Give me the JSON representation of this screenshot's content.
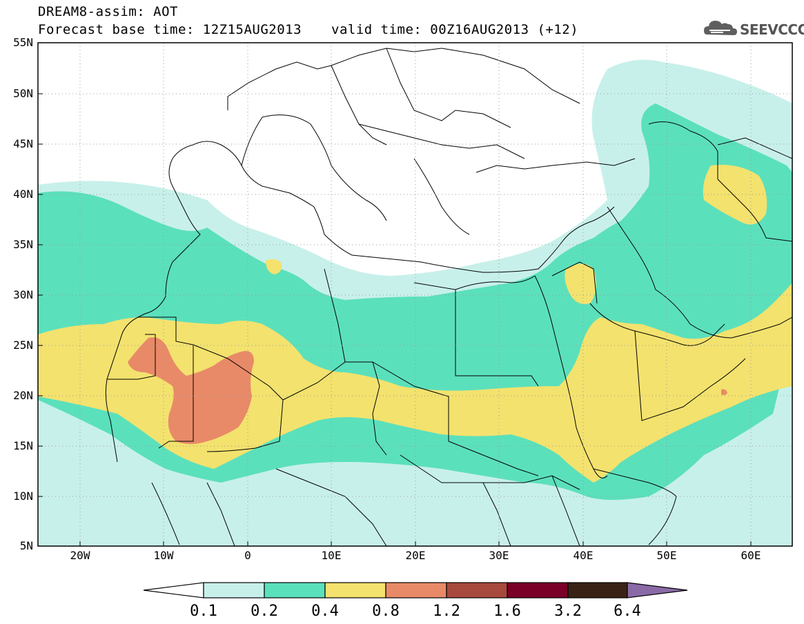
{
  "header": {
    "title": "DREAM8-assim: AOT",
    "base_time": "Forecast base time: 12Z15AUG2013",
    "valid_time": "valid time: 00Z16AUG2013 (+12)",
    "logo_text": "SEEVCCC"
  },
  "axes": {
    "lat_labels": [
      "55N",
      "50N",
      "45N",
      "40N",
      "35N",
      "30N",
      "25N",
      "20N",
      "15N",
      "10N",
      "5N"
    ],
    "lon_labels": [
      "20W",
      "10W",
      "0",
      "10E",
      "20E",
      "30E",
      "40E",
      "50E",
      "60E"
    ]
  },
  "colorbar": {
    "labels": [
      "0.1",
      "0.2",
      "0.4",
      "0.8",
      "1.2",
      "1.6",
      "3.2",
      "6.4"
    ],
    "colors": [
      "#ffffff",
      "#c8f0ea",
      "#5be0bc",
      "#f3e26e",
      "#e88a68",
      "#a8493d",
      "#7a0027",
      "#3a2316",
      "#8a6aa6"
    ]
  },
  "colors": {
    "level1": "#c8f0ea",
    "level2": "#5be0bc",
    "level3": "#f3e26e",
    "level4": "#e88a68",
    "border": "#000000",
    "grid": "#9a9a9a"
  }
}
